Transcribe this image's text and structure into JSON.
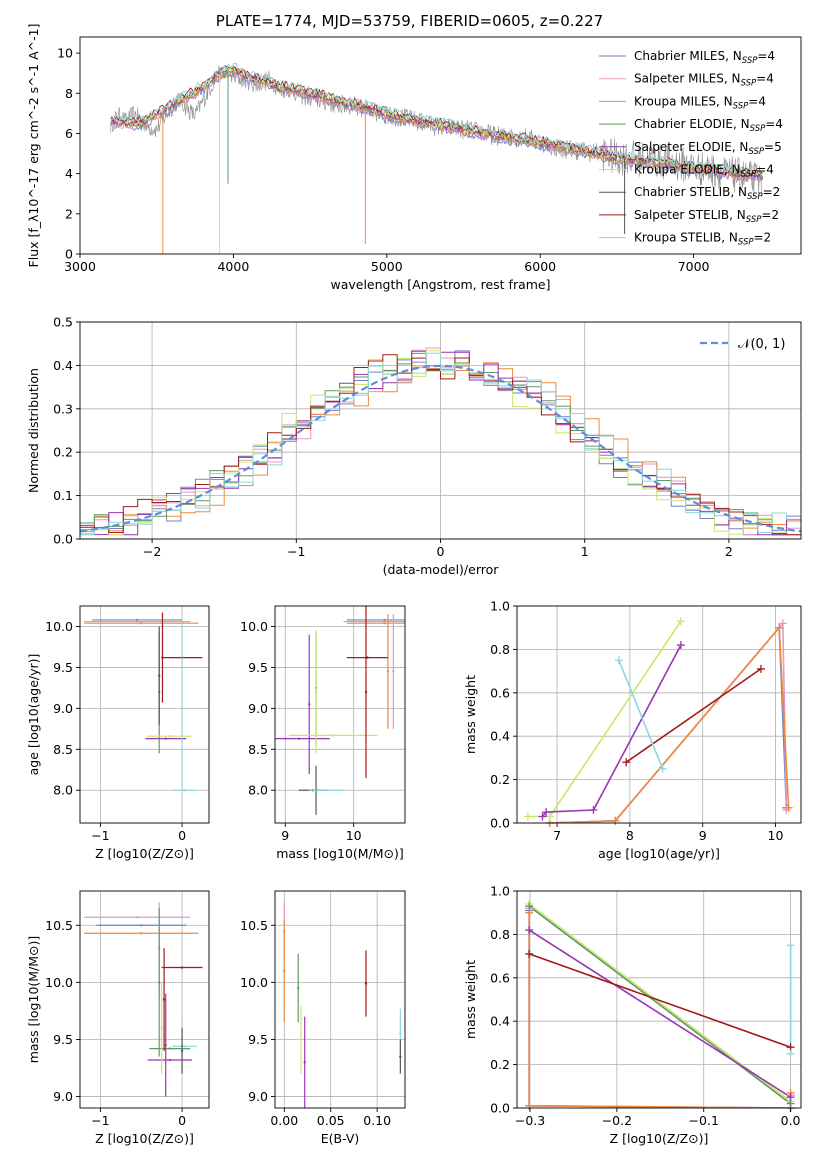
{
  "title": "PLATE=1774, MJD=53759, FIBERID=0605, z=0.227",
  "model_colors": [
    "#6f84c7",
    "#e497c4",
    "#ef8a3c",
    "#5e9a64",
    "#9b35b3",
    "#c8e86c",
    "#575757",
    "#a21b17",
    "#8fd6d8"
  ],
  "chart_data": [
    {
      "id": "spectrum",
      "type": "line",
      "title": "PLATE=1774, MJD=53759, FIBERID=0605, z=0.227",
      "xlabel": "wavelength [Angstrom, rest frame]",
      "ylabel": "Flux [f_λ10^-17 erg cm^-2 s^-1 A^-1]",
      "xlim": [
        3000,
        7700
      ],
      "ylim": [
        0,
        10.8
      ],
      "xticks": [
        3000,
        4000,
        5000,
        6000,
        7000
      ],
      "yticks": [
        0,
        2,
        4,
        6,
        8,
        10
      ],
      "legend_position": "top-right",
      "legend": [
        {
          "label": "Chabrier MILES, N",
          "sub": "SSP",
          "tail": "=4"
        },
        {
          "label": "Salpeter MILES, N",
          "sub": "SSP",
          "tail": "=4"
        },
        {
          "label": "Kroupa MILES, N",
          "sub": "SSP",
          "tail": "=4"
        },
        {
          "label": "Chabrier ELODIE, N",
          "sub": "SSP",
          "tail": "=4"
        },
        {
          "label": "Salpeter ELODIE, N",
          "sub": "SSP",
          "tail": "=5"
        },
        {
          "label": "Kroupa ELODIE, N",
          "sub": "SSP",
          "tail": "=4"
        },
        {
          "label": "Chabrier STELIB, N",
          "sub": "SSP",
          "tail": "=2"
        },
        {
          "label": "Salpeter STELIB, N",
          "sub": "SSP",
          "tail": "=2"
        },
        {
          "label": "Kroupa STELIB, N",
          "sub": "SSP",
          "tail": "=2"
        }
      ],
      "data_series": {
        "name": "data",
        "color": "#8a8a8a",
        "x": [
          3200,
          3250,
          3300,
          3350,
          3400,
          3450,
          3500,
          3550,
          3600,
          3650,
          3700,
          3750,
          3800,
          3850,
          3900,
          3950,
          4000,
          4050,
          4100,
          4150,
          4200,
          4250,
          4300,
          4350,
          4400,
          4450,
          4500,
          4600,
          4700,
          4800,
          4900,
          5000,
          5100,
          5200,
          5300,
          5400,
          5500,
          5600,
          5700,
          5800,
          5900,
          6000,
          6100,
          6200,
          6300,
          6400,
          6500,
          6600,
          6700,
          6800,
          6900,
          7000,
          7100,
          7200,
          7300,
          7400
        ],
        "y": [
          6.4,
          6.9,
          6.6,
          7.0,
          6.7,
          6.3,
          6.2,
          6.8,
          7.3,
          7.7,
          7.2,
          6.9,
          7.6,
          8.3,
          8.9,
          9.1,
          8.8,
          8.7,
          8.6,
          8.4,
          8.6,
          8.7,
          8.1,
          8.3,
          8.1,
          7.9,
          7.8,
          7.6,
          7.4,
          7.4,
          7.1,
          6.9,
          6.8,
          6.6,
          6.4,
          6.3,
          6.2,
          6.1,
          5.9,
          5.8,
          5.8,
          5.6,
          5.3,
          5.2,
          5.1,
          5.0,
          4.8,
          4.8,
          4.7,
          4.6,
          4.5,
          4.3,
          4.2,
          4.0,
          3.9,
          3.7
        ]
      },
      "model_curve": {
        "x": [
          3200,
          3400,
          3600,
          3800,
          3900,
          4000,
          4100,
          4200,
          4300,
          4400,
          4500,
          4700,
          4900,
          5100,
          5300,
          5500,
          5700,
          5900,
          6100,
          6300,
          6500,
          6700,
          6900,
          7100,
          7300,
          7450
        ],
        "y": [
          6.6,
          6.5,
          7.4,
          8.3,
          8.9,
          9.2,
          8.8,
          8.6,
          8.3,
          8.2,
          8.0,
          7.6,
          7.2,
          6.8,
          6.5,
          6.2,
          5.9,
          5.7,
          5.4,
          5.1,
          4.8,
          4.6,
          4.4,
          4.2,
          4.0,
          3.9
        ]
      },
      "spikes": [
        {
          "x": 3540,
          "y": 0,
          "color": "#ef8a3c"
        },
        {
          "x": 3910,
          "y": 0,
          "color": "#c8e86c"
        },
        {
          "x": 3965,
          "y": 3.5,
          "color": "#5e9a64"
        },
        {
          "x": 4860,
          "y": 0.5,
          "color": "#ef8a3c"
        },
        {
          "x": 6550,
          "y": 1.0,
          "color": "#575757"
        }
      ]
    },
    {
      "id": "residuals",
      "type": "line",
      "xlabel": "(data-model)/error",
      "ylabel": "Normed distribution",
      "xlim": [
        -2.5,
        2.5
      ],
      "ylim": [
        0,
        0.5
      ],
      "xticks": [
        -2,
        -1,
        0,
        1,
        2
      ],
      "yticks": [
        0.0,
        0.1,
        0.2,
        0.3,
        0.4,
        0.5
      ],
      "legend_position": "top-right",
      "normal_label": "𝒩(0, 1)",
      "normal_color": "#5b8fd8"
    },
    {
      "id": "age_vs_Z",
      "type": "scatter",
      "xlabel": "Z [log10(Z/Z⊙)]",
      "ylabel": "age [log10(age/yr)]",
      "xlim": [
        -1.25,
        0.33
      ],
      "ylim": [
        7.6,
        10.25
      ],
      "xticks": [
        -1,
        0
      ],
      "yticks": [
        8.0,
        8.5,
        9.0,
        9.5,
        10.0
      ],
      "points": [
        {
          "x": -0.55,
          "xerr": 0.55,
          "y": 10.08,
          "yerr": 0,
          "c": 0
        },
        {
          "x": -0.55,
          "xerr": 0.65,
          "y": 10.06,
          "yerr": 0,
          "c": 1
        },
        {
          "x": -0.5,
          "xerr": 0.7,
          "y": 10.04,
          "yerr": 0,
          "c": 2
        },
        {
          "x": -0.28,
          "xerr": 0,
          "y": 9.2,
          "yerr": 0.75,
          "c": 3
        },
        {
          "x": -0.2,
          "xerr": 0.25,
          "y": 8.63,
          "yerr": 0,
          "c": 4
        },
        {
          "x": -0.15,
          "xerr": 0.28,
          "y": 8.66,
          "yerr": 0,
          "c": 5
        },
        {
          "x": -0.28,
          "xerr": 0,
          "y": 9.4,
          "yerr": 0.6,
          "c": 6
        },
        {
          "x": 0.0,
          "xerr": 0.25,
          "y": 9.62,
          "yerr": 0,
          "c": 7
        },
        {
          "x": -0.24,
          "xerr": 0,
          "y": 9.62,
          "yerr": 0.55,
          "c": 7
        },
        {
          "x": 0.03,
          "xerr": 0.15,
          "y": 8.0,
          "yerr": 0,
          "c": 8
        },
        {
          "x": 0.0,
          "xerr": 0,
          "y": 9.0,
          "yerr": 1.0,
          "c": 8
        }
      ]
    },
    {
      "id": "age_vs_mass",
      "type": "scatter",
      "xlabel": "mass [log10(M/M⊙)]",
      "ylabel": "",
      "xlim": [
        8.85,
        10.75
      ],
      "ylim": [
        7.6,
        10.25
      ],
      "xticks": [
        9,
        10
      ],
      "yticks": [
        8.0,
        8.5,
        9.0,
        9.5,
        10.0
      ],
      "points": [
        {
          "x": 10.45,
          "xerr": 0.55,
          "y": 10.08,
          "yerr": 0,
          "c": 0
        },
        {
          "x": 10.45,
          "xerr": 0.6,
          "y": 10.06,
          "yerr": 0,
          "c": 1
        },
        {
          "x": 10.45,
          "xerr": 0.55,
          "y": 10.04,
          "yerr": 0,
          "c": 2
        },
        {
          "x": 10.5,
          "xerr": 0,
          "y": 9.45,
          "yerr": 0.7,
          "c": 2
        },
        {
          "x": 10.58,
          "xerr": 0,
          "y": 9.45,
          "yerr": 0.7,
          "c": 1
        },
        {
          "x": 9.45,
          "xerr": 0,
          "y": 9.25,
          "yerr": 0.7,
          "c": 3
        },
        {
          "x": 9.2,
          "xerr": 0.45,
          "y": 8.63,
          "yerr": 0,
          "c": 4
        },
        {
          "x": 9.35,
          "xerr": 0,
          "y": 9.05,
          "yerr": 0.85,
          "c": 4
        },
        {
          "x": 9.7,
          "xerr": 0.65,
          "y": 8.67,
          "yerr": 0,
          "c": 5
        },
        {
          "x": 9.45,
          "xerr": 0,
          "y": 9.2,
          "yerr": 0.75,
          "c": 5
        },
        {
          "x": 9.4,
          "xerr": 0.2,
          "y": 8.0,
          "yerr": 0,
          "c": 6
        },
        {
          "x": 9.45,
          "xerr": 0,
          "y": 8.0,
          "yerr": 0.3,
          "c": 6
        },
        {
          "x": 10.2,
          "xerr": 0.3,
          "y": 9.62,
          "yerr": 0,
          "c": 7
        },
        {
          "x": 10.18,
          "xerr": 0,
          "y": 9.2,
          "yerr": 1.05,
          "c": 7
        },
        {
          "x": 9.6,
          "xerr": 0.25,
          "y": 8.0,
          "yerr": 0,
          "c": 8
        }
      ]
    },
    {
      "id": "weight_vs_age",
      "type": "line",
      "xlabel": "age [log10(age/yr)]",
      "ylabel": "mass weight",
      "xlim": [
        6.45,
        10.35
      ],
      "ylim": [
        0,
        1.0
      ],
      "xticks": [
        7,
        8,
        9,
        10
      ],
      "yticks": [
        0.0,
        0.2,
        0.4,
        0.6,
        0.8,
        1.0
      ],
      "series": [
        {
          "c": 0,
          "x": [
            6.9,
            7.8,
            10.05,
            10.15
          ],
          "y": [
            0.0,
            0.01,
            0.9,
            0.07
          ]
        },
        {
          "c": 1,
          "x": [
            6.9,
            7.8,
            10.1,
            10.15
          ],
          "y": [
            0.0,
            0.01,
            0.92,
            0.06
          ]
        },
        {
          "c": 2,
          "x": [
            6.9,
            7.8,
            10.05,
            10.18
          ],
          "y": [
            0.0,
            0.01,
            0.9,
            0.07
          ]
        },
        {
          "c": 5,
          "x": [
            6.6,
            6.9,
            8.7
          ],
          "y": [
            0.03,
            0.03,
            0.93
          ]
        },
        {
          "c": 4,
          "x": [
            6.8,
            6.85,
            7.5,
            8.7
          ],
          "y": [
            0.03,
            0.05,
            0.06,
            0.82
          ]
        },
        {
          "c": 7,
          "x": [
            7.95,
            9.8
          ],
          "y": [
            0.28,
            0.71
          ]
        },
        {
          "c": 8,
          "x": [
            7.85,
            8.45
          ],
          "y": [
            0.75,
            0.25
          ]
        }
      ]
    },
    {
      "id": "mass_vs_Z",
      "type": "scatter",
      "xlabel": "Z [log10(Z/Z⊙)]",
      "ylabel": "mass [log10(M/M⊙)]",
      "xlim": [
        -1.25,
        0.33
      ],
      "ylim": [
        8.9,
        10.8
      ],
      "xticks": [
        -1,
        0
      ],
      "yticks": [
        9.0,
        9.5,
        10.0,
        10.5
      ],
      "points": [
        {
          "x": -0.55,
          "xerr": 0.65,
          "y": 10.57,
          "yerr": 0,
          "c": 1
        },
        {
          "x": -0.5,
          "xerr": 0.55,
          "y": 10.5,
          "yerr": 0,
          "c": 0
        },
        {
          "x": -0.5,
          "xerr": 0.7,
          "y": 10.43,
          "yerr": 0,
          "c": 2
        },
        {
          "x": -0.28,
          "xerr": 0,
          "y": 10.3,
          "yerr": 0.4,
          "c": 1
        },
        {
          "x": -0.28,
          "xerr": 0,
          "y": 10.0,
          "yerr": 0.65,
          "c": 3
        },
        {
          "x": -0.15,
          "xerr": 0.25,
          "y": 9.42,
          "yerr": 0,
          "c": 3
        },
        {
          "x": -0.15,
          "xerr": 0.27,
          "y": 9.32,
          "yerr": 0,
          "c": 4
        },
        {
          "x": -0.2,
          "xerr": 0,
          "y": 9.45,
          "yerr": 0.45,
          "c": 4
        },
        {
          "x": -0.25,
          "xerr": 0,
          "y": 9.6,
          "yerr": 0.4,
          "c": 5
        },
        {
          "x": 0.0,
          "xerr": 0.25,
          "y": 10.13,
          "yerr": 0,
          "c": 7
        },
        {
          "x": -0.22,
          "xerr": 0,
          "y": 9.85,
          "yerr": 0.45,
          "c": 7
        },
        {
          "x": 0.03,
          "xerr": 0.15,
          "y": 9.44,
          "yerr": 0,
          "c": 8
        },
        {
          "x": 0.0,
          "xerr": 0,
          "y": 9.45,
          "yerr": 0.25,
          "c": 8
        },
        {
          "x": 0.0,
          "xerr": 0,
          "y": 9.4,
          "yerr": 0.2,
          "c": 6
        }
      ]
    },
    {
      "id": "mass_vs_EBV",
      "type": "scatter",
      "xlabel": "E(B-V)",
      "ylabel": "",
      "xlim": [
        -0.01,
        0.13
      ],
      "ylim": [
        8.9,
        10.8
      ],
      "xticks": [
        0.0,
        0.05,
        0.1
      ],
      "yticks": [
        9.0,
        9.5,
        10.0,
        10.5
      ],
      "points": [
        {
          "x": 0.0,
          "xerr": 0,
          "y": 10.45,
          "yerr": 0.25,
          "c": 1
        },
        {
          "x": 0.0,
          "xerr": 0,
          "y": 10.1,
          "yerr": 0.45,
          "c": 2
        },
        {
          "x": 0.015,
          "xerr": 0,
          "y": 9.95,
          "yerr": 0.3,
          "c": 3
        },
        {
          "x": 0.018,
          "xerr": 0,
          "y": 9.5,
          "yerr": 0.3,
          "c": 5
        },
        {
          "x": 0.022,
          "xerr": 0,
          "y": 9.3,
          "yerr": 0.4,
          "c": 4
        },
        {
          "x": 0.088,
          "xerr": 0,
          "y": 9.99,
          "yerr": 0.29,
          "c": 7
        },
        {
          "x": 0.125,
          "xerr": 0,
          "y": 9.55,
          "yerr": 0.22,
          "c": 8
        },
        {
          "x": 0.125,
          "xerr": 0,
          "y": 9.35,
          "yerr": 0.15,
          "c": 6
        }
      ]
    },
    {
      "id": "weight_vs_Z",
      "type": "line",
      "xlabel": "Z [log10(Z/Z⊙)]",
      "ylabel": "mass weight",
      "xlim": [
        -0.315,
        0.012
      ],
      "ylim": [
        0,
        1.0
      ],
      "xticks": [
        -0.3,
        -0.2,
        -0.1,
        0.0
      ],
      "yticks": [
        0.0,
        0.2,
        0.4,
        0.6,
        0.8,
        1.0
      ],
      "series": [
        {
          "c": 0,
          "x": [
            -0.301,
            -0.301,
            0.0,
            0.0
          ],
          "y": [
            0.91,
            0.01,
            0.0,
            0.06
          ]
        },
        {
          "c": 1,
          "x": [
            -0.301,
            -0.301,
            0.0,
            0.0
          ],
          "y": [
            0.92,
            0.01,
            0.0,
            0.06
          ]
        },
        {
          "c": 2,
          "x": [
            -0.301,
            -0.301,
            0.0,
            0.0
          ],
          "y": [
            0.9,
            0.01,
            0.0,
            0.07
          ]
        },
        {
          "c": 5,
          "x": [
            -0.301,
            0.0
          ],
          "y": [
            0.94,
            0.03
          ]
        },
        {
          "c": 3,
          "x": [
            -0.301,
            0.0
          ],
          "y": [
            0.93,
            0.02
          ]
        },
        {
          "c": 4,
          "x": [
            -0.301,
            0.0
          ],
          "y": [
            0.82,
            0.05
          ]
        },
        {
          "c": 7,
          "x": [
            -0.301,
            0.0
          ],
          "y": [
            0.71,
            0.28
          ]
        },
        {
          "c": 8,
          "x": [
            0.0,
            0.0
          ],
          "y": [
            0.75,
            0.25
          ]
        }
      ]
    }
  ]
}
